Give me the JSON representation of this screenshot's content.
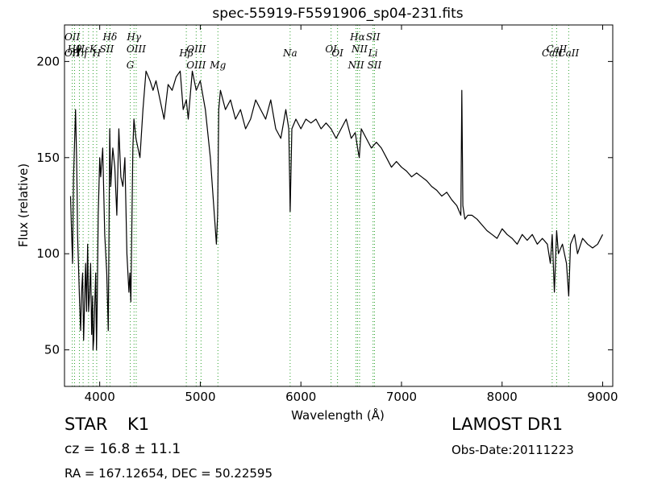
{
  "chart_data": {
    "type": "line",
    "title": "spec-55919-F5591906_sp04-231.fits",
    "xlabel": "Wavelength (Å)",
    "ylabel": "Flux (relative)",
    "xlim": [
      3650,
      9100
    ],
    "ylim": [
      31,
      219
    ],
    "xticks": [
      4000,
      5000,
      6000,
      7000,
      8000,
      9000
    ],
    "yticks": [
      50,
      100,
      150,
      200
    ],
    "grid": false,
    "line_color": "#000000",
    "marker_color": "#2ca02c",
    "series": [
      {
        "x": [
          3710,
          3720,
          3730,
          3740,
          3750,
          3760,
          3770,
          3775,
          3780,
          3790,
          3800,
          3810,
          3820,
          3830,
          3840,
          3850,
          3860,
          3870,
          3880,
          3890,
          3900,
          3910,
          3920,
          3930,
          3934,
          3940,
          3950,
          3960,
          3968,
          3975,
          3985,
          4000,
          4010,
          4030,
          4050,
          4070,
          4085,
          4100,
          4110,
          4130,
          4150,
          4170,
          4190,
          4210,
          4230,
          4250,
          4270,
          4290,
          4300,
          4310,
          4330,
          4340,
          4360,
          4380,
          4400,
          4430,
          4460,
          4500,
          4530,
          4560,
          4600,
          4640,
          4680,
          4720,
          4760,
          4800,
          4830,
          4861,
          4880,
          4920,
          4960,
          5000,
          5050,
          5100,
          5140,
          5160,
          5172,
          5183,
          5200,
          5250,
          5300,
          5350,
          5400,
          5450,
          5500,
          5550,
          5600,
          5650,
          5700,
          5750,
          5800,
          5850,
          5880,
          5893,
          5910,
          5950,
          6000,
          6050,
          6100,
          6150,
          6200,
          6250,
          6300,
          6350,
          6400,
          6450,
          6500,
          6540,
          6563,
          6580,
          6600,
          6650,
          6700,
          6750,
          6800,
          6850,
          6900,
          6950,
          7000,
          7050,
          7100,
          7150,
          7200,
          7250,
          7300,
          7350,
          7400,
          7450,
          7500,
          7550,
          7590,
          7600,
          7610,
          7630,
          7660,
          7700,
          7750,
          7800,
          7850,
          7900,
          7950,
          8000,
          8050,
          8100,
          8150,
          8200,
          8250,
          8300,
          8350,
          8400,
          8450,
          8480,
          8498,
          8520,
          8542,
          8560,
          8600,
          8640,
          8662,
          8680,
          8720,
          8750,
          8800,
          8850,
          8900,
          8950,
          9000
        ],
        "values": [
          130,
          112,
          95,
          140,
          158,
          175,
          150,
          133,
          110,
          92,
          75,
          60,
          80,
          90,
          55,
          76,
          95,
          70,
          105,
          70,
          80,
          95,
          58,
          78,
          50,
          55,
          72,
          90,
          50,
          75,
          120,
          150,
          140,
          155,
          110,
          90,
          60,
          165,
          135,
          155,
          145,
          120,
          165,
          140,
          135,
          150,
          100,
          80,
          90,
          75,
          155,
          170,
          160,
          155,
          150,
          175,
          195,
          190,
          185,
          190,
          180,
          170,
          188,
          185,
          192,
          195,
          175,
          180,
          170,
          195,
          185,
          190,
          175,
          150,
          120,
          105,
          120,
          175,
          185,
          175,
          180,
          170,
          175,
          165,
          170,
          180,
          175,
          170,
          180,
          165,
          160,
          175,
          165,
          122,
          165,
          170,
          165,
          170,
          168,
          170,
          165,
          168,
          165,
          160,
          165,
          170,
          160,
          163,
          155,
          150,
          165,
          160,
          155,
          158,
          155,
          150,
          145,
          148,
          145,
          143,
          140,
          142,
          140,
          138,
          135,
          133,
          130,
          132,
          128,
          125,
          120,
          185,
          125,
          118,
          120,
          120,
          118,
          115,
          112,
          110,
          108,
          113,
          110,
          108,
          105,
          110,
          107,
          110,
          105,
          108,
          105,
          95,
          110,
          80,
          112,
          100,
          105,
          95,
          78,
          105,
          110,
          100,
          108,
          105,
          103,
          105,
          110
        ]
      }
    ],
    "line_markers": [
      {
        "x": 3727,
        "top": "OII",
        "bottom": "OII"
      },
      {
        "x": 3750,
        "top": "Hθ",
        "bottom": ""
      },
      {
        "x": 3798,
        "top": "",
        "bottom": "Hη"
      },
      {
        "x": 3835,
        "top": "Hε",
        "bottom": ""
      },
      {
        "x": 3889,
        "top": "",
        "bottom": ""
      },
      {
        "x": 3934,
        "top": "K",
        "bottom": ""
      },
      {
        "x": 3970,
        "top": "",
        "bottom": "H"
      },
      {
        "x": 4070,
        "top": "SII",
        "bottom": ""
      },
      {
        "x": 4102,
        "top": "Hδ",
        "bottom": ""
      },
      {
        "x": 4304,
        "top": "",
        "bottom": "G"
      },
      {
        "x": 4341,
        "top": "Hγ",
        "bottom": ""
      },
      {
        "x": 4363,
        "top": "OIII",
        "bottom": ""
      },
      {
        "x": 4861,
        "top": "",
        "bottom": "Hβ"
      },
      {
        "x": 4959,
        "top": "OIII",
        "bottom": "OIII"
      },
      {
        "x": 5007,
        "top": "",
        "bottom": ""
      },
      {
        "x": 5175,
        "top": "",
        "bottom": "Mg"
      },
      {
        "x": 5893,
        "top": "",
        "bottom": "Na"
      },
      {
        "x": 6300,
        "top": "OI",
        "bottom": ""
      },
      {
        "x": 6364,
        "top": "",
        "bottom": "OI"
      },
      {
        "x": 6548,
        "top": "",
        "bottom": "NII"
      },
      {
        "x": 6563,
        "top": "Hα",
        "bottom": ""
      },
      {
        "x": 6583,
        "top": "NII",
        "bottom": ""
      },
      {
        "x": 6717,
        "top": "SII",
        "bottom": "Li"
      },
      {
        "x": 6731,
        "top": "",
        "bottom": "SII"
      },
      {
        "x": 8498,
        "top": "",
        "bottom": "CaII"
      },
      {
        "x": 8542,
        "top": "CaII",
        "bottom": ""
      },
      {
        "x": 8662,
        "top": "",
        "bottom": "CaII"
      }
    ]
  },
  "info": {
    "object_type": "STAR",
    "subclass": "K1",
    "redshift": "cz = 16.8 ± 11.1",
    "coordinates": "RA = 167.12654, DEC = 50.22595",
    "survey": "LAMOST DR1",
    "obs_date": "Obs-Date:20111223"
  }
}
